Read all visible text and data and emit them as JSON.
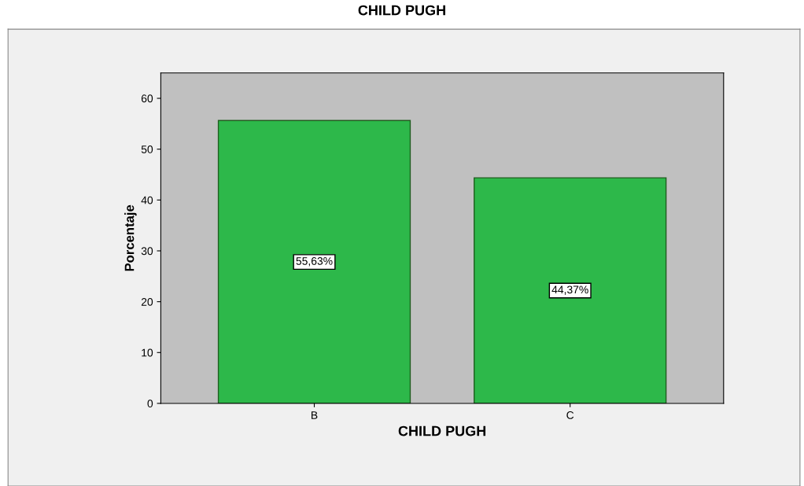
{
  "chart_data": {
    "type": "bar",
    "title": "CHILD PUGH",
    "xlabel": "CHILD PUGH",
    "ylabel": "Porcentaje",
    "categories": [
      "B",
      "C"
    ],
    "values": [
      55.63,
      44.37
    ],
    "value_labels": [
      "55,63%",
      "44,37%"
    ],
    "color": "#2db84a",
    "ylim": [
      0,
      65
    ],
    "yticks": [
      0,
      10,
      20,
      30,
      40,
      50,
      60
    ],
    "grid": false
  }
}
